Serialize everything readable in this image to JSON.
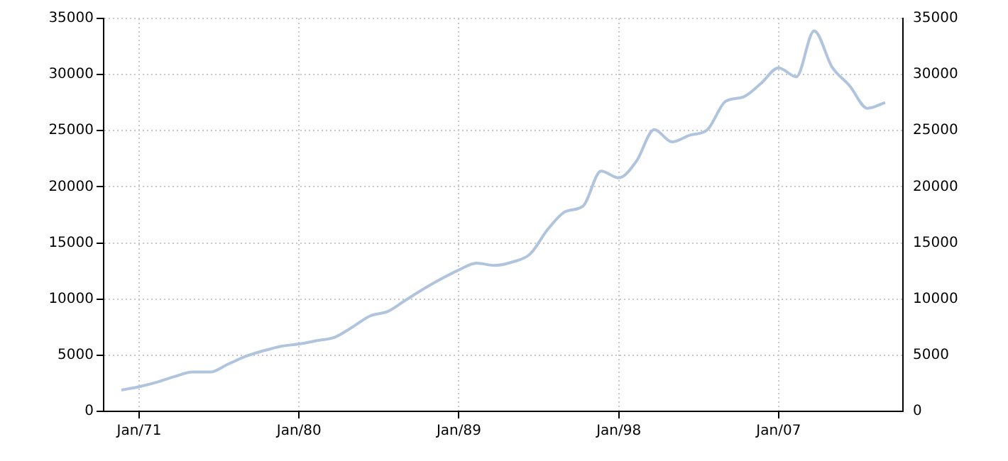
{
  "chart_data": {
    "type": "line",
    "x": [
      "1970",
      "1971",
      "1972",
      "1973",
      "1974",
      "1975",
      "1976",
      "1977",
      "1978",
      "1979",
      "1980",
      "1981",
      "1982",
      "1983",
      "1984",
      "1985",
      "1986",
      "1987",
      "1988",
      "1989",
      "1990",
      "1991",
      "1992",
      "1993",
      "1994",
      "1995",
      "1996",
      "1997",
      "1998",
      "1999",
      "2000",
      "2001",
      "2002",
      "2003",
      "2004",
      "2005",
      "2006",
      "2007",
      "2008",
      "2009",
      "2010",
      "2011",
      "2012",
      "2013"
    ],
    "series": [
      {
        "color": "#b0c4de",
        "values": [
          1900,
          2200,
          2600,
          3100,
          3500,
          3500,
          4200,
          4900,
          5400,
          5800,
          6000,
          6300,
          6600,
          7500,
          8500,
          8900,
          9900,
          10900,
          11800,
          12600,
          13200,
          13000,
          13300,
          14000,
          16200,
          17800,
          18300,
          21400,
          20800,
          22300,
          25100,
          24000,
          24600,
          25100,
          27600,
          28000,
          29200,
          30600,
          29800,
          33900,
          30700,
          29000,
          27000,
          27500
        ]
      }
    ],
    "xlim": [
      "1969",
      "2014"
    ],
    "xticks": [
      {
        "value": "1971",
        "label": "Jan/71"
      },
      {
        "value": "1980",
        "label": "Jan/80"
      },
      {
        "value": "1989",
        "label": "Jan/89"
      },
      {
        "value": "1998",
        "label": "Jan/98"
      },
      {
        "value": "2007",
        "label": "Jan/07"
      }
    ],
    "ylim": [
      0,
      35000
    ],
    "yticks": [
      0,
      5000,
      10000,
      15000,
      20000,
      25000,
      30000,
      35000
    ],
    "y2lim": [
      0,
      35000
    ],
    "y2ticks": [
      0,
      5000,
      10000,
      15000,
      20000,
      25000,
      30000,
      35000
    ],
    "grid": true,
    "legend": false,
    "marker": "none",
    "line_style": "solid"
  }
}
